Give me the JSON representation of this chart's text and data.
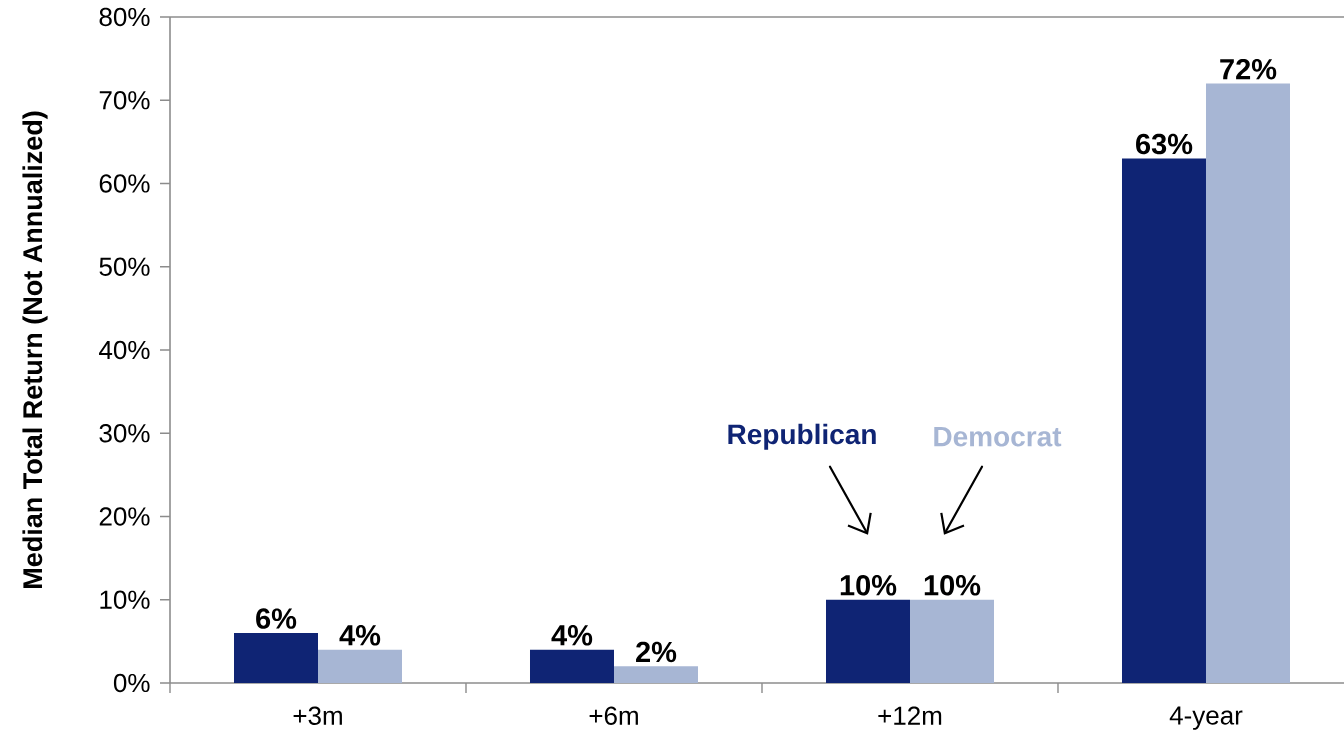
{
  "chart_data": {
    "type": "bar",
    "categories": [
      "+3m",
      "+6m",
      "+12m",
      "4-year"
    ],
    "ylabel": "Median Total Return  (Not Annualized)",
    "ylim": [
      0,
      80
    ],
    "yticks": [
      {
        "value": 0,
        "label": "0%"
      },
      {
        "value": 10,
        "label": "10%"
      },
      {
        "value": 20,
        "label": "20%"
      },
      {
        "value": 30,
        "label": "30%"
      },
      {
        "value": 40,
        "label": "40%"
      },
      {
        "value": 50,
        "label": "50%"
      },
      {
        "value": 60,
        "label": "60%"
      },
      {
        "value": 70,
        "label": "70%"
      },
      {
        "value": 80,
        "label": "80%"
      }
    ],
    "series": [
      {
        "name": "Republican",
        "color": "#0f2474",
        "values": [
          6,
          4,
          10,
          63
        ],
        "value_labels": [
          "6%",
          "4%",
          "10%",
          "63%"
        ]
      },
      {
        "name": "Democrat",
        "color": "#a7b6d4",
        "values": [
          4,
          2,
          10,
          72
        ],
        "value_labels": [
          "4%",
          "2%",
          "10%",
          "72%"
        ]
      }
    ]
  }
}
